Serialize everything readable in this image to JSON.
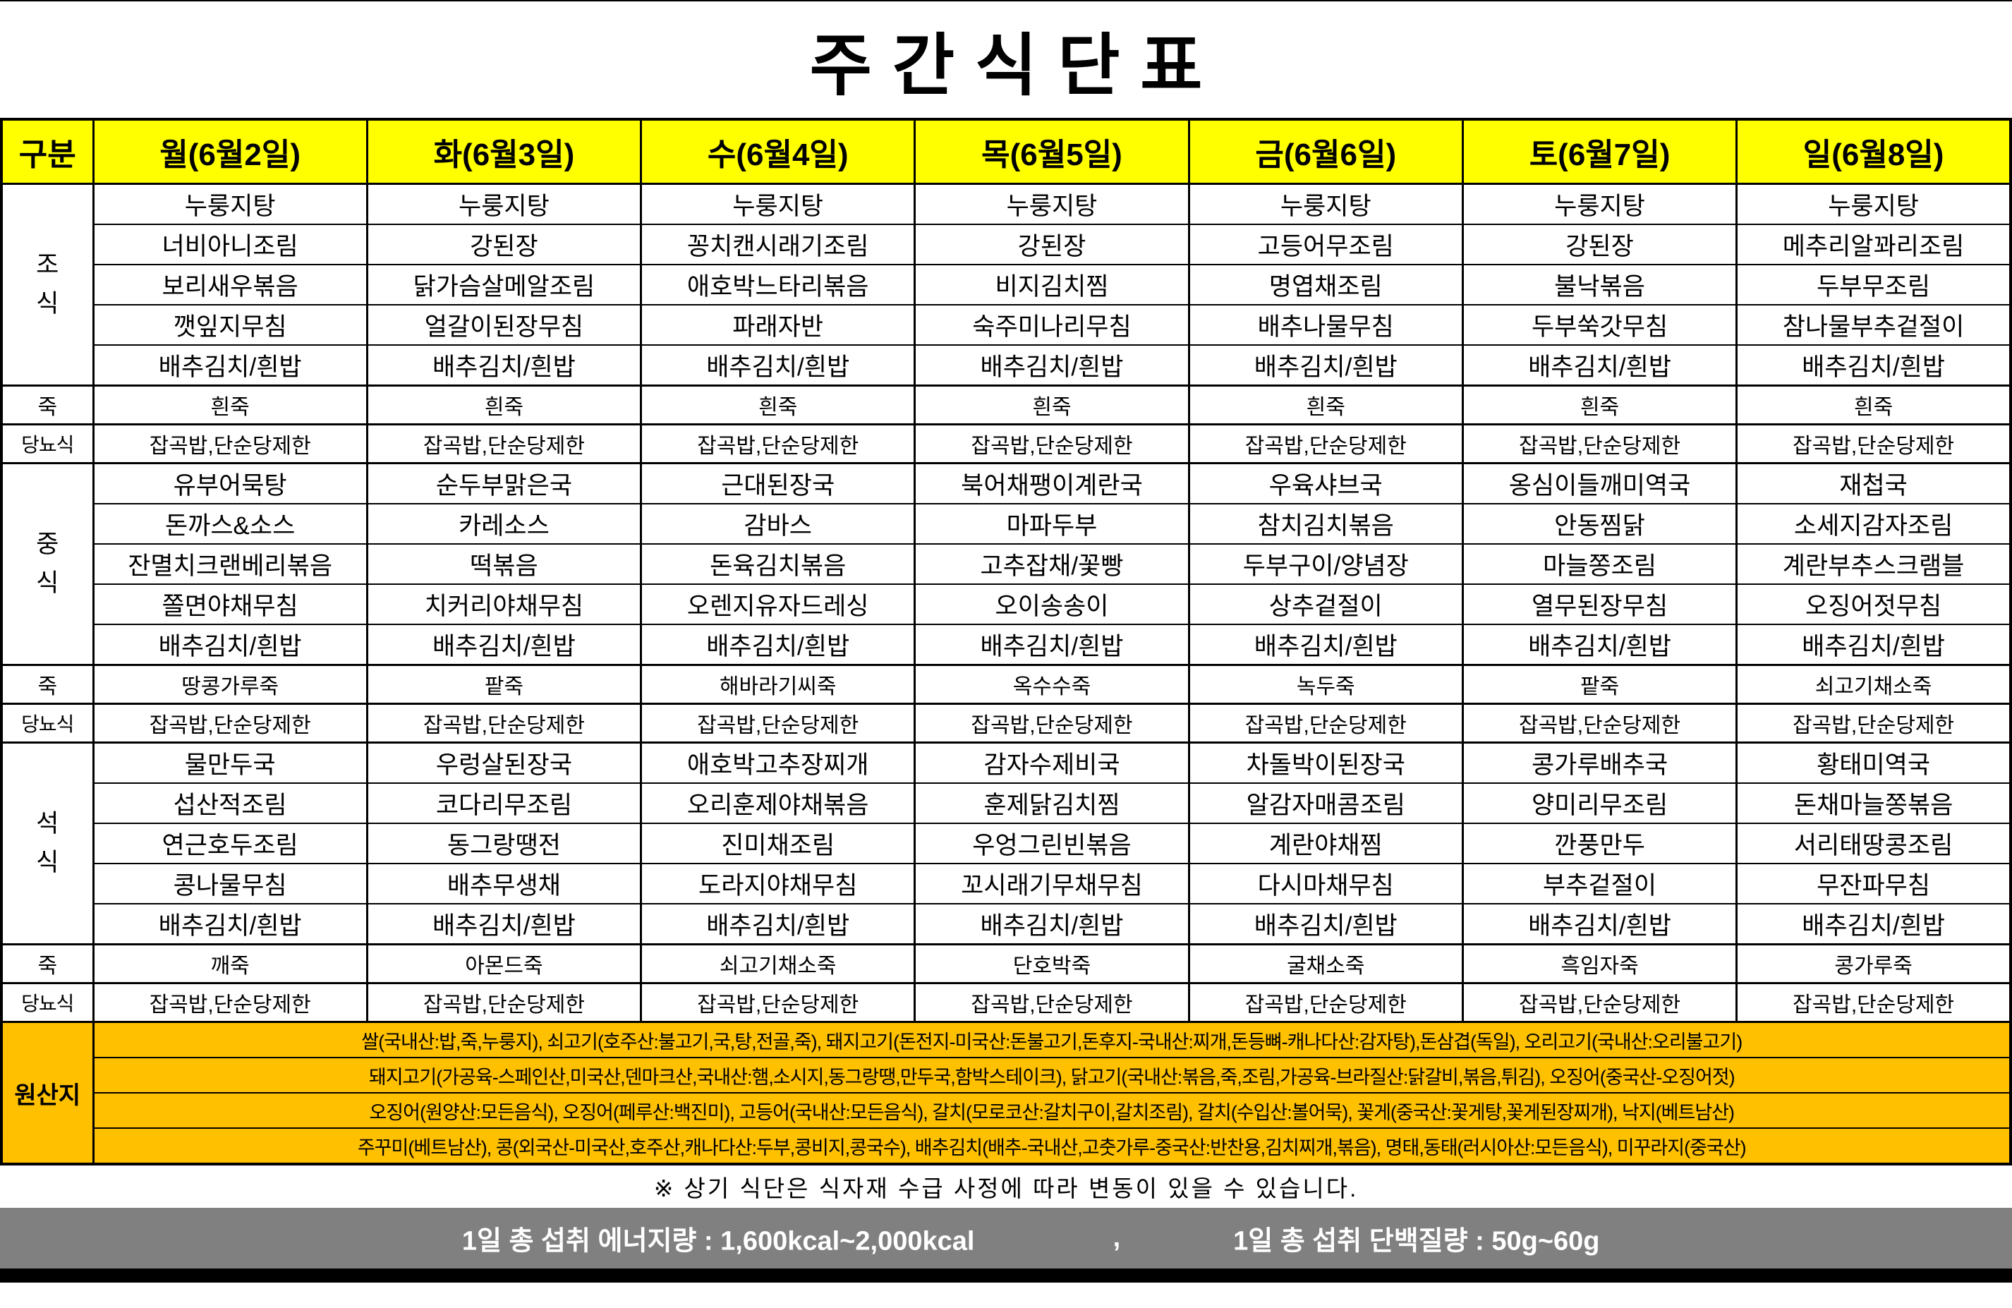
{
  "title": "주간식단표",
  "colors": {
    "header_yellow": "#ffff00",
    "section_green": "#92d050",
    "origin_orange": "#ffc000",
    "footer_gray": "#808080",
    "border_black": "#000000"
  },
  "table": {
    "corner_label": "구분",
    "days": [
      "월(6월2일)",
      "화(6월3일)",
      "수(6월4일)",
      "목(6월5일)",
      "금(6월6일)",
      "토(6월7일)",
      "일(6월8일)"
    ],
    "sections": [
      {
        "key": "breakfast",
        "label": "조식",
        "type": "meal",
        "rows": [
          [
            "누룽지탕",
            "누룽지탕",
            "누룽지탕",
            "누룽지탕",
            "누룽지탕",
            "누룽지탕",
            "누룽지탕"
          ],
          [
            "너비아니조림",
            "강된장",
            "꽁치캔시래기조림",
            "강된장",
            "고등어무조림",
            "강된장",
            "메추리알꽈리조림"
          ],
          [
            "보리새우볶음",
            "닭가슴살메알조림",
            "애호박느타리볶음",
            "비지김치찜",
            "명엽채조림",
            "불낙볶음",
            "두부무조림"
          ],
          [
            "깻잎지무침",
            "얼갈이된장무침",
            "파래자반",
            "숙주미나리무침",
            "배추나물무침",
            "두부쑥갓무침",
            "참나물부추겉절이"
          ],
          [
            "배추김치/흰밥",
            "배추김치/흰밥",
            "배추김치/흰밥",
            "배추김치/흰밥",
            "배추김치/흰밥",
            "배추김치/흰밥",
            "배추김치/흰밥"
          ]
        ]
      },
      {
        "key": "porridge-breakfast",
        "label": "죽",
        "type": "sub",
        "cells": [
          "흰죽",
          "흰죽",
          "흰죽",
          "흰죽",
          "흰죽",
          "흰죽",
          "흰죽"
        ]
      },
      {
        "key": "diabetic-breakfast",
        "label": "당뇨식",
        "type": "sub",
        "cells": [
          "잡곡밥,단순당제한",
          "잡곡밥,단순당제한",
          "잡곡밥,단순당제한",
          "잡곡밥,단순당제한",
          "잡곡밥,단순당제한",
          "잡곡밥,단순당제한",
          "잡곡밥,단순당제한"
        ]
      },
      {
        "key": "lunch",
        "label": "중식",
        "type": "meal",
        "rows": [
          [
            "유부어묵탕",
            "순두부맑은국",
            "근대된장국",
            "북어채팽이계란국",
            "우육샤브국",
            "옹심이들깨미역국",
            "재첩국"
          ],
          [
            "돈까스&소스",
            "카레소스",
            "감바스",
            "마파두부",
            "참치김치볶음",
            "안동찜닭",
            "소세지감자조림"
          ],
          [
            "잔멸치크랜베리볶음",
            "떡볶음",
            "돈육김치볶음",
            "고추잡채/꽃빵",
            "두부구이/양념장",
            "마늘쫑조림",
            "계란부추스크램블"
          ],
          [
            "쫄면야채무침",
            "치커리야채무침",
            "오렌지유자드레싱",
            "오이송송이",
            "상추겉절이",
            "열무된장무침",
            "오징어젓무침"
          ],
          [
            "배추김치/흰밥",
            "배추김치/흰밥",
            "배추김치/흰밥",
            "배추김치/흰밥",
            "배추김치/흰밥",
            "배추김치/흰밥",
            "배추김치/흰밥"
          ]
        ]
      },
      {
        "key": "porridge-lunch",
        "label": "죽",
        "type": "sub",
        "cells": [
          "땅콩가루죽",
          "팥죽",
          "해바라기씨죽",
          "옥수수죽",
          "녹두죽",
          "팥죽",
          "쇠고기채소죽"
        ]
      },
      {
        "key": "diabetic-lunch",
        "label": "당뇨식",
        "type": "sub",
        "cells": [
          "잡곡밥,단순당제한",
          "잡곡밥,단순당제한",
          "잡곡밥,단순당제한",
          "잡곡밥,단순당제한",
          "잡곡밥,단순당제한",
          "잡곡밥,단순당제한",
          "잡곡밥,단순당제한"
        ]
      },
      {
        "key": "dinner",
        "label": "석식",
        "type": "meal",
        "rows": [
          [
            "물만두국",
            "우렁살된장국",
            "애호박고추장찌개",
            "감자수제비국",
            "차돌박이된장국",
            "콩가루배추국",
            "황태미역국"
          ],
          [
            "섭산적조림",
            "코다리무조림",
            "오리훈제야채볶음",
            "훈제닭김치찜",
            "알감자매콤조림",
            "양미리무조림",
            "돈채마늘쫑볶음"
          ],
          [
            "연근호두조림",
            "동그랑땡전",
            "진미채조림",
            "우엉그린빈볶음",
            "계란야채찜",
            "깐풍만두",
            "서리태땅콩조림"
          ],
          [
            "콩나물무침",
            "배추무생채",
            "도라지야채무침",
            "꼬시래기무채무침",
            "다시마채무침",
            "부추겉절이",
            "무잔파무침"
          ],
          [
            "배추김치/흰밥",
            "배추김치/흰밥",
            "배추김치/흰밥",
            "배추김치/흰밥",
            "배추김치/흰밥",
            "배추김치/흰밥",
            "배추김치/흰밥"
          ]
        ]
      },
      {
        "key": "porridge-dinner",
        "label": "죽",
        "type": "sub",
        "cells": [
          "깨죽",
          "아몬드죽",
          "쇠고기채소죽",
          "단호박죽",
          "굴채소죽",
          "흑임자죽",
          "콩가루죽"
        ]
      },
      {
        "key": "diabetic-dinner",
        "label": "당뇨식",
        "type": "sub",
        "cells": [
          "잡곡밥,단순당제한",
          "잡곡밥,단순당제한",
          "잡곡밥,단순당제한",
          "잡곡밥,단순당제한",
          "잡곡밥,단순당제한",
          "잡곡밥,단순당제한",
          "잡곡밥,단순당제한"
        ]
      }
    ],
    "origin": {
      "label": "원산지",
      "lines": [
        "쌀(국내산:밥,죽,누룽지), 쇠고기(호주산:불고기,국,탕,전골,죽), 돼지고기(돈전지-미국산:돈불고기,돈후지-국내산:찌개,돈등뼈-캐나다산:감자탕),돈삼겹(독일), 오리고기(국내산:오리불고기)",
        "돼지고기(가공육-스페인산,미국산,덴마크산,국내산:햄,소시지,동그랑땡,만두국,함박스테이크), 닭고기(국내산:볶음,죽,조림,가공육-브라질산:닭갈비,볶음,튀김), 오징어(중국산-오징어젓)",
        "오징어(원양산:모든음식), 오징어(페루산:백진미), 고등어(국내산:모든음식), 갈치(모로코산:갈치구이,갈치조림), 갈치(수입산:볼어묵), 꽃게(중국산:꽃게탕,꽃게된장찌개), 낙지(베트남산)",
        "주꾸미(베트남산), 콩(외국산-미국산,호주산,캐나다산:두부,콩비지,콩국수), 배추김치(배추-국내산,고춧가루-중국산:반찬용,김치찌개,볶음), 명태,동태(러시아산:모든음식), 미꾸라지(중국산)"
      ]
    }
  },
  "note": "※ 상기 식단은 식자재 수급 사정에 따라 변동이 있을 수 있습니다.",
  "footer": {
    "energy": "1일 총 섭취 에너지량   :  1,600kcal~2,000kcal",
    "separator": ",",
    "protein": "1일 총 섭취 단백질량 : 50g~60g"
  }
}
